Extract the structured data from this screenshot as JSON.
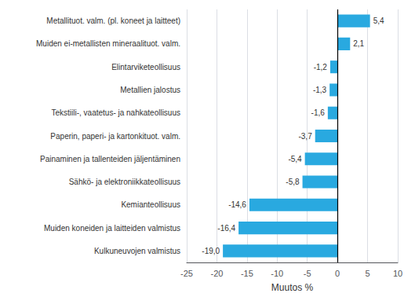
{
  "chart_data": {
    "type": "bar",
    "orientation": "horizontal",
    "categories": [
      "Kulkuneuvojen valmistus",
      "Muiden koneiden ja laitteiden valmistus",
      "Kemianteollisuus",
      "Sähkö- ja elektroniikkateollisuus",
      "Painaminen ja tallenteiden jäljentäminen",
      "Paperin, paperi- ja kartonkituot. valm.",
      "Tekstiili-, vaatetus- ja nahkateollisuus",
      "Metallien jalostus",
      "Elintarviketeollisuus",
      "Muiden ei-metallisten mineraalituot. valm.",
      "Metallituot. valm. (pl. koneet ja laitteet)"
    ],
    "values": [
      -19.0,
      -16.4,
      -14.6,
      -5.8,
      -5.4,
      -3.7,
      -1.6,
      -1.3,
      -1.2,
      2.1,
      5.4
    ],
    "value_labels": [
      "-19,0",
      "-16,4",
      "-14,6",
      "-5,8",
      "-5,4",
      "-3,7",
      "-1,6",
      "-1,3",
      "-1,2",
      "2,1",
      "5,4"
    ],
    "data_labels": true,
    "color": "#29a9e0",
    "xlabel": "Muutos %",
    "xlim": [
      -25,
      10
    ],
    "xticks": [
      -25,
      -20,
      -15,
      -10,
      -5,
      0,
      5,
      10
    ],
    "grid": true
  }
}
